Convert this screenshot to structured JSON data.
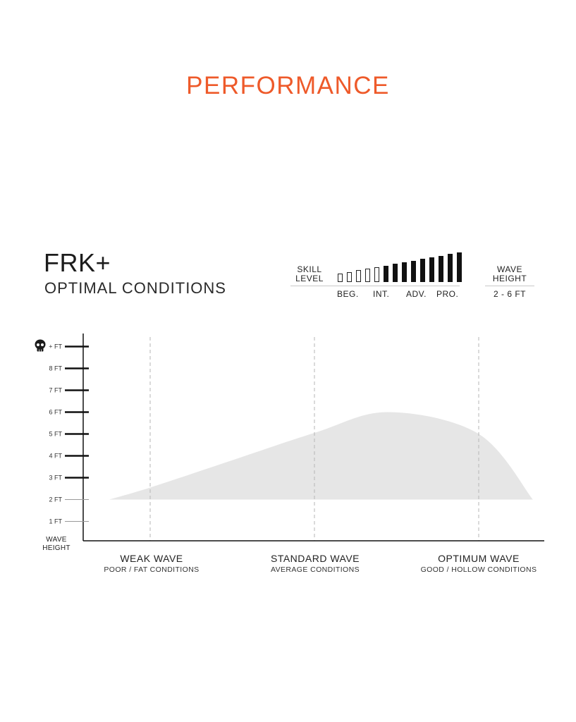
{
  "heading": "PERFORMANCE",
  "board": {
    "name": "FRK+",
    "subtitle": "OPTIMAL CONDITIONS"
  },
  "skill": {
    "title_line1": "SKILL",
    "title_line2": "LEVEL",
    "bars_total": 14,
    "bars_filled_from": 5,
    "labels": [
      "BEG.",
      "INT.",
      "ADV.",
      "PRO."
    ]
  },
  "wave_height": {
    "title_line1": "WAVE",
    "title_line2": "HEIGHT",
    "value": "2 - 6 FT"
  },
  "colors": {
    "accent": "#ee5a2a",
    "area": "#e6e6e6",
    "axis": "#111111",
    "guide": "#b5b5b5"
  },
  "chart_data": {
    "type": "area",
    "y_axis": {
      "title_line1": "WAVE",
      "title_line2": "HEIGHT",
      "ticks": [
        {
          "value": 1,
          "label": "1 FT",
          "major": false
        },
        {
          "value": 2,
          "label": "2 FT",
          "major": false
        },
        {
          "value": 3,
          "label": "3 FT",
          "major": true
        },
        {
          "value": 4,
          "label": "4 FT",
          "major": true
        },
        {
          "value": 5,
          "label": "5 FT",
          "major": true
        },
        {
          "value": 6,
          "label": "6 FT",
          "major": true
        },
        {
          "value": 7,
          "label": "7 FT",
          "major": true
        },
        {
          "value": 8,
          "label": "8 FT",
          "major": true
        },
        {
          "value": 9,
          "label": "+ FT",
          "major": true,
          "icon": "skull-icon"
        }
      ]
    },
    "x_axis": {
      "categories": [
        {
          "title": "WEAK WAVE",
          "subtitle": "POOR / FAT CONDITIONS"
        },
        {
          "title": "STANDARD WAVE",
          "subtitle": "AVERAGE CONDITIONS"
        },
        {
          "title": "OPTIMUM WAVE",
          "subtitle": "GOOD / HOLLOW CONDITIONS"
        }
      ]
    },
    "range_area": {
      "lower_ft": 2,
      "upper_curve": [
        {
          "x": -0.25,
          "y": 2.0
        },
        {
          "x": 0.0,
          "y": 2.55
        },
        {
          "x": 0.5,
          "y": 3.8
        },
        {
          "x": 1.0,
          "y": 5.05
        },
        {
          "x": 1.45,
          "y": 6.0
        },
        {
          "x": 2.0,
          "y": 5.0
        },
        {
          "x": 2.33,
          "y": 2.0
        }
      ]
    }
  }
}
